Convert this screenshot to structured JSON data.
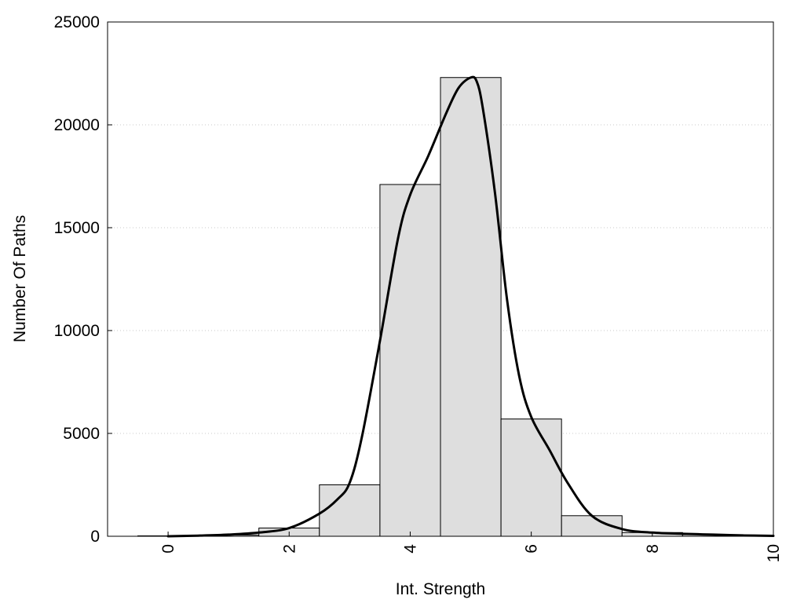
{
  "chart_data": {
    "type": "bar",
    "xlabel": "Int. Strength",
    "ylabel": "Number Of Paths",
    "xlim": [
      -1,
      10
    ],
    "ylim": [
      0,
      25000
    ],
    "x_ticks": [
      "0",
      "2",
      "4",
      "6",
      "8",
      "10"
    ],
    "y_ticks": [
      "0",
      "5000",
      "10000",
      "15000",
      "20000",
      "25000"
    ],
    "grid": "horizontal dotted",
    "bar_color": "#dedede",
    "line_color": "#000000",
    "bars": {
      "x": [
        0,
        1,
        2,
        3,
        4,
        5,
        6,
        7,
        8,
        9
      ],
      "values": [
        20,
        60,
        400,
        2500,
        17100,
        22300,
        5700,
        1000,
        180,
        80
      ]
    },
    "curve": {
      "x": [
        0,
        0.5,
        1,
        1.5,
        2,
        2.5,
        2.8,
        3,
        3.2,
        3.5,
        3.8,
        4,
        4.3,
        4.6,
        4.8,
        5.0,
        5.1,
        5.2,
        5.4,
        5.6,
        5.8,
        6,
        6.3,
        6.6,
        7,
        7.5,
        8,
        8.5,
        9,
        9.5,
        10
      ],
      "values": [
        0,
        30,
        80,
        180,
        400,
        1100,
        1800,
        2600,
        4800,
        9500,
        14500,
        16600,
        18500,
        20600,
        21800,
        22300,
        22100,
        20800,
        16700,
        11500,
        7800,
        5800,
        4200,
        2600,
        1000,
        350,
        180,
        120,
        80,
        40,
        20
      ]
    }
  }
}
